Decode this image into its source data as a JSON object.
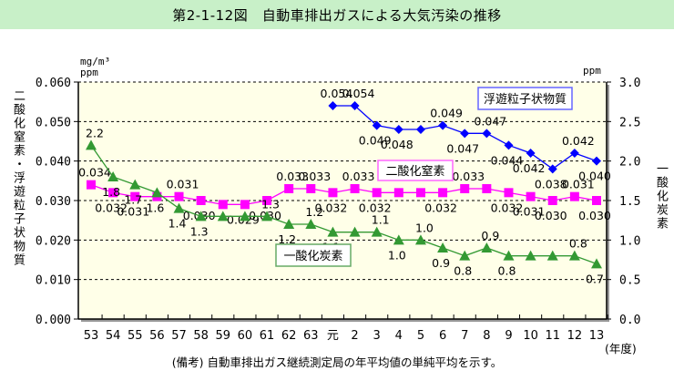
{
  "title": "第2-1-12図　自動車排出ガスによる大気汚染の推移",
  "left_axis_title": "二酸化窒素・浮遊粒子状物質",
  "right_axis_title": "一酸化炭素",
  "left_unit_line1": "mg/m³",
  "left_unit_line2": "ppm",
  "right_unit": "ppm",
  "xunit": "(年度)",
  "note": "(備考) 自動車排出ガス継続測定局の年平均値の単純平均を示す。",
  "chart_data": {
    "type": "line",
    "title": "第2-1-12図　自動車排出ガスによる大気汚染の推移",
    "xlabel": "(年度)",
    "ylabel_left": "二酸化窒素・浮遊粒子状物質 (mg/m³, ppm)",
    "ylabel_right": "一酸化炭素 (ppm)",
    "categories": [
      "53",
      "54",
      "55",
      "56",
      "57",
      "58",
      "59",
      "60",
      "61",
      "62",
      "63",
      "元",
      "2",
      "3",
      "4",
      "5",
      "6",
      "7",
      "8",
      "9",
      "10",
      "11",
      "12",
      "13"
    ],
    "ylim_left": [
      0,
      0.06
    ],
    "yticks_left": [
      "0.000",
      "0.010",
      "0.020",
      "0.030",
      "0.040",
      "0.050",
      "0.060"
    ],
    "ylim_right": [
      0,
      3.0
    ],
    "yticks_right": [
      "0.0",
      "0.5",
      "1.0",
      "1.5",
      "2.0",
      "2.5",
      "3.0"
    ],
    "grid": true,
    "series": [
      {
        "name": "浮遊粒子状物質",
        "axis": "left",
        "color": "#0000ff",
        "marker": "diamond",
        "values": [
          null,
          null,
          null,
          null,
          null,
          null,
          null,
          null,
          null,
          null,
          null,
          0.054,
          0.054,
          0.049,
          0.048,
          0.048,
          0.049,
          0.047,
          0.047,
          0.044,
          0.042,
          0.038,
          0.042,
          0.04
        ],
        "labels": [
          null,
          null,
          null,
          null,
          null,
          null,
          null,
          null,
          null,
          null,
          null,
          "0.054",
          "0.054",
          "0.049",
          "0.048",
          null,
          "0.049",
          "0.047",
          "0.047",
          "0.044",
          "0.042",
          "0.038",
          "0.042",
          "0.040"
        ]
      },
      {
        "name": "二酸化窒素",
        "axis": "left",
        "color": "#ff00ff",
        "marker": "square",
        "values": [
          0.034,
          0.032,
          0.031,
          0.031,
          0.031,
          0.03,
          0.029,
          0.029,
          0.03,
          0.033,
          0.033,
          0.032,
          0.033,
          0.032,
          0.032,
          0.032,
          0.032,
          0.033,
          0.033,
          0.032,
          0.031,
          0.03,
          0.031,
          0.03
        ],
        "labels": [
          "0.034",
          "0.032",
          "0.031",
          null,
          "0.031",
          "0.030",
          null,
          "0.029",
          "0.030",
          "0.033",
          "0.033",
          "0.032",
          "0.033",
          "0.032",
          null,
          null,
          "0.032",
          "0.033",
          null,
          "0.032",
          "0.031",
          "0.030",
          "0.031",
          "0.030"
        ]
      },
      {
        "name": "一酸化炭素",
        "axis": "right",
        "color": "#339933",
        "marker": "triangle",
        "values": [
          2.2,
          1.8,
          1.7,
          1.6,
          1.4,
          1.3,
          1.3,
          1.3,
          1.3,
          1.2,
          1.2,
          1.1,
          1.1,
          1.1,
          1.0,
          1.0,
          0.9,
          0.8,
          0.9,
          0.8,
          0.8,
          0.8,
          0.8,
          0.7
        ],
        "labels": [
          "2.2",
          "1.8",
          "1.7",
          "1.6",
          "1.4",
          "1.3",
          null,
          null,
          "1.3",
          "1.2",
          "1.2",
          "1.1",
          null,
          "1.1",
          "1.0",
          "1.0",
          "0.9",
          "0.8",
          "0.9",
          "0.8",
          null,
          null,
          "0.8",
          "0.7"
        ]
      }
    ],
    "legend": [
      {
        "name": "浮遊粒子状物質",
        "placement": "top-right"
      },
      {
        "name": "二酸化窒素",
        "placement": "middle-center"
      },
      {
        "name": "一酸化炭素",
        "placement": "lower-center"
      }
    ]
  }
}
